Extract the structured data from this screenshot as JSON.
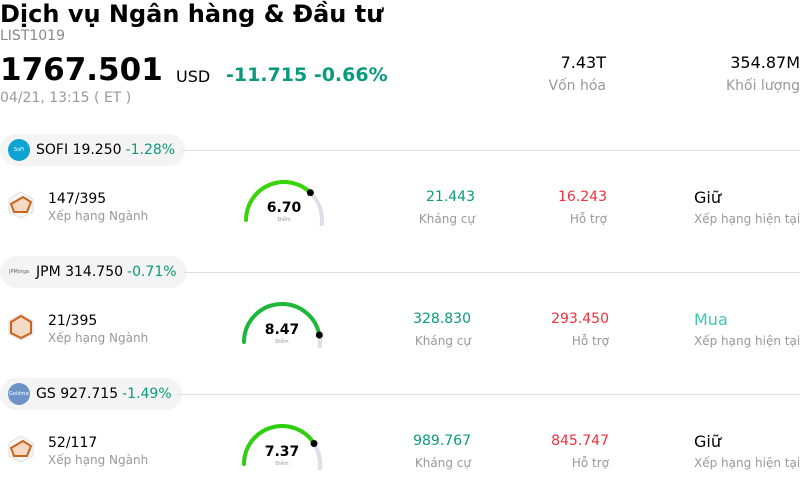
{
  "header": {
    "title": "Dịch vụ Ngân hàng & Đầu tư",
    "code": "LIST1019",
    "price": "1767.501",
    "currency": "USD",
    "change": "-11.715 -0.66%",
    "time": "04/21, 13:15  ( ET )",
    "market_cap": {
      "value": "7.43T",
      "label": "Vốn hóa"
    },
    "volume": {
      "value": "354.87M",
      "label": "Khối lượng"
    }
  },
  "colors": {
    "negative_change": "#0a9a7c",
    "resistance": "#0a9a7c",
    "support": "#f0303c",
    "buy": "#3cc7b4",
    "gauge_track": "#dedee8"
  },
  "stocks": [
    {
      "ticker": "SOFI",
      "logo_text": "SoFi",
      "price": "19.250",
      "change": "-1.28%",
      "rank": "147/395",
      "rank_label": "Xếp hạng Ngành",
      "score": 6.7,
      "score_text": "6.70",
      "score_label": "Điểm",
      "gauge_color": "#3ad40a",
      "resistance": "21.443",
      "resistance_label": "Kháng cự",
      "support": "16.243",
      "support_label": "Hỗ trợ",
      "rating": "Giữ",
      "rating_label": "Xếp hạng hiện tại",
      "rating_color": "#000000"
    },
    {
      "ticker": "JPM",
      "logo_text": "JPMorgan Chase",
      "price": "314.750",
      "change": "-0.71%",
      "rank": "21/395",
      "rank_label": "Xếp hạng Ngành",
      "score": 8.47,
      "score_text": "8.47",
      "score_label": "Điểm",
      "gauge_color": "#1db83a",
      "resistance": "328.830",
      "resistance_label": "Kháng cự",
      "support": "293.450",
      "support_label": "Hỗ trợ",
      "rating": "Mua",
      "rating_label": "Xếp hạng hiện tại",
      "rating_color": "#3cc7b4"
    },
    {
      "ticker": "GS",
      "logo_text": "Goldman Sachs",
      "price": "927.715",
      "change": "-1.49%",
      "rank": "52/117",
      "rank_label": "Xếp hạng Ngành",
      "score": 7.37,
      "score_text": "7.37",
      "score_label": "Điểm",
      "gauge_color": "#2ed00e",
      "resistance": "989.767",
      "resistance_label": "Kháng cự",
      "support": "845.747",
      "support_label": "Hỗ trợ",
      "rating": "Giữ",
      "rating_label": "Xếp hạng hiện tại",
      "rating_color": "#000000"
    }
  ]
}
